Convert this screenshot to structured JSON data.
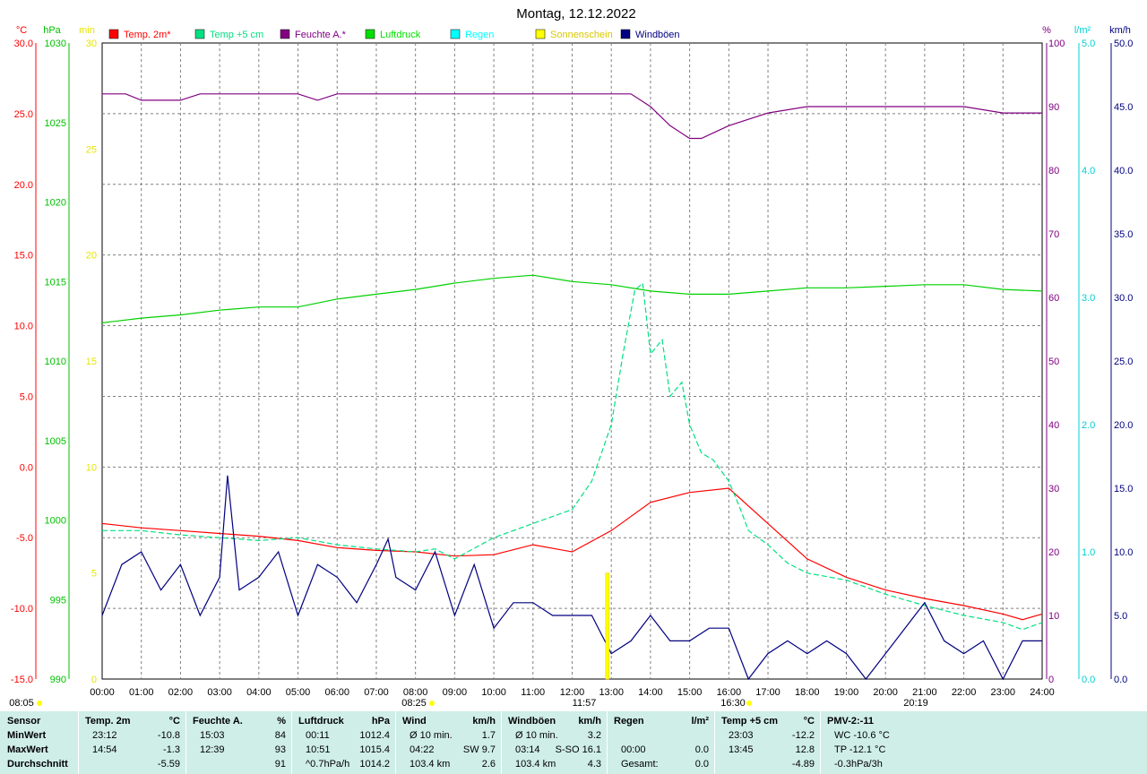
{
  "title": "Montag, 12.12.2022",
  "legend": [
    {
      "label": "Temp. 2m*",
      "color": "#ff0000"
    },
    {
      "label": "Temp +5 cm",
      "color": "#00e080"
    },
    {
      "label": "Feuchte A.*",
      "color": "#800080"
    },
    {
      "label": "Luftdruck",
      "color": "#00e000"
    },
    {
      "label": "Regen",
      "color": "#00ffff"
    },
    {
      "label": "Sonnenschein",
      "color": "#ffff00"
    },
    {
      "label": "Windböen",
      "color": "#000080"
    }
  ],
  "axes": {
    "temp": {
      "unit": "°C",
      "ticks": [
        "30.0",
        "25.0",
        "20.0",
        "15.0",
        "10.0",
        "5.0",
        "0.0",
        "-5.0",
        "-10.0",
        "-15.0"
      ],
      "color": "#ff0000"
    },
    "hpa": {
      "unit": "hPa",
      "ticks": [
        "1030",
        "1025",
        "1020",
        "1015",
        "1010",
        "1005",
        "1000",
        "995",
        "990"
      ],
      "color": "#00c000"
    },
    "min": {
      "unit": "min",
      "ticks": [
        "30",
        "25",
        "20",
        "15",
        "10",
        "5",
        "0"
      ],
      "color": "#e6e600"
    },
    "pct": {
      "unit": "%",
      "ticks": [
        "100",
        "90",
        "80",
        "70",
        "60",
        "50",
        "40",
        "30",
        "20",
        "10",
        "0"
      ],
      "color": "#800080"
    },
    "rain": {
      "unit": "l/m²",
      "ticks": [
        "5.0",
        "4.0",
        "3.0",
        "2.0",
        "1.0",
        "0.0"
      ],
      "color": "#00d0d0"
    },
    "kmh": {
      "unit": "km/h",
      "ticks": [
        "50.0",
        "45.0",
        "40.0",
        "35.0",
        "30.0",
        "25.0",
        "20.0",
        "15.0",
        "10.0",
        "5.0",
        "0.0"
      ],
      "color": "#000080"
    }
  },
  "x_ticks": [
    "00:00",
    "01:00",
    "02:00",
    "03:00",
    "04:00",
    "05:00",
    "06:00",
    "07:00",
    "08:00",
    "09:00",
    "10:00",
    "11:00",
    "12:00",
    "13:00",
    "14:00",
    "15:00",
    "16:00",
    "17:00",
    "18:00",
    "19:00",
    "20:00",
    "21:00",
    "22:00",
    "23:00",
    "24:00"
  ],
  "sun_labels": {
    "left": "08:05",
    "rise": "08:25",
    "noon": "11:57",
    "set": "16:30",
    "right": "20:19"
  },
  "chart_data": {
    "type": "line",
    "x_unit": "hour",
    "xlim": [
      0,
      24
    ],
    "series": [
      {
        "name": "Temp. 2m*",
        "axis": "°C",
        "ylim": [
          -15,
          30
        ],
        "x": [
          0,
          1,
          2,
          3,
          4,
          5,
          6,
          7,
          8,
          9,
          10,
          11,
          12,
          13,
          14,
          15,
          16,
          17,
          18,
          19,
          20,
          21,
          22,
          23,
          23.5,
          24
        ],
        "values": [
          -4.0,
          -4.3,
          -4.5,
          -4.7,
          -4.9,
          -5.2,
          -5.7,
          -5.9,
          -6.0,
          -6.3,
          -6.2,
          -5.5,
          -6.0,
          -4.5,
          -2.5,
          -1.8,
          -1.5,
          -4.0,
          -6.5,
          -7.8,
          -8.7,
          -9.3,
          -9.8,
          -10.4,
          -10.8,
          -10.4
        ]
      },
      {
        "name": "Temp +5 cm",
        "axis": "°C",
        "ylim": [
          -15,
          30
        ],
        "x": [
          0,
          1,
          2,
          3,
          4,
          5,
          6,
          7,
          8,
          8.5,
          9,
          10,
          11,
          11.5,
          12,
          12.5,
          13,
          13.3,
          13.6,
          13.8,
          14,
          14.3,
          14.5,
          14.8,
          15,
          15.3,
          15.6,
          16,
          16.3,
          16.5,
          17,
          17.5,
          18,
          19,
          20,
          21,
          22,
          23,
          23.5,
          24
        ],
        "values": [
          -4.5,
          -4.5,
          -4.8,
          -5.0,
          -5.2,
          -5.0,
          -5.5,
          -5.8,
          -6.0,
          -5.8,
          -6.5,
          -5.0,
          -4.0,
          -3.5,
          -3.0,
          -1.0,
          3.0,
          8.0,
          12.5,
          13.0,
          8.0,
          9.0,
          5.0,
          6.0,
          3.0,
          1.0,
          0.5,
          -1.0,
          -3.0,
          -4.5,
          -5.5,
          -6.8,
          -7.5,
          -8.0,
          -9.0,
          -9.8,
          -10.5,
          -11.0,
          -11.5,
          -11.0
        ]
      },
      {
        "name": "Feuchte A.*",
        "axis": "%",
        "ylim": [
          0,
          100
        ],
        "x": [
          0,
          0.6,
          1,
          2,
          2.5,
          3,
          4,
          5,
          5.5,
          6,
          7,
          8,
          9,
          10,
          11,
          12,
          13,
          13.5,
          14,
          14.5,
          15,
          15.3,
          16,
          17,
          18,
          19,
          20,
          21,
          22,
          23,
          24
        ],
        "values": [
          92,
          92,
          91,
          91,
          92,
          92,
          92,
          92,
          91,
          92,
          92,
          92,
          92,
          92,
          92,
          92,
          92,
          92,
          90,
          87,
          85,
          85,
          87,
          89,
          90,
          90,
          90,
          90,
          90,
          89,
          89
        ]
      },
      {
        "name": "Luftdruck",
        "axis": "hPa",
        "ylim": [
          990,
          1030
        ],
        "x": [
          0,
          1,
          2,
          3,
          4,
          5,
          6,
          7,
          8,
          9,
          10,
          11,
          12,
          13,
          14,
          15,
          16,
          17,
          18,
          19,
          20,
          21,
          22,
          23,
          24
        ],
        "values": [
          1012.4,
          1012.7,
          1012.9,
          1013.2,
          1013.4,
          1013.4,
          1013.9,
          1014.2,
          1014.5,
          1014.9,
          1015.2,
          1015.4,
          1015.0,
          1014.8,
          1014.4,
          1014.2,
          1014.2,
          1014.4,
          1014.6,
          1014.6,
          1014.7,
          1014.8,
          1014.8,
          1014.5,
          1014.4
        ]
      },
      {
        "name": "Windböen",
        "axis": "km/h",
        "ylim": [
          0,
          50
        ],
        "x": [
          0,
          0.5,
          1,
          1.5,
          2,
          2.5,
          3,
          3.2,
          3.5,
          4,
          4.5,
          5,
          5.5,
          6,
          6.5,
          7,
          7.3,
          7.5,
          8,
          8.5,
          9,
          9.5,
          10,
          10.5,
          11,
          11.5,
          12,
          12.5,
          13,
          13.5,
          14,
          14.5,
          15,
          15.5,
          16,
          16.5,
          17,
          17.5,
          18,
          18.5,
          19,
          19.5,
          20,
          20.5,
          21,
          21.5,
          22,
          22.5,
          23,
          23.5,
          24
        ],
        "values": [
          5,
          9,
          10,
          7,
          9,
          5,
          8,
          16,
          7,
          8,
          10,
          5,
          9,
          8,
          6,
          9,
          11,
          8,
          7,
          10,
          5,
          9,
          4,
          6,
          6,
          5,
          5,
          5,
          2,
          3,
          5,
          3,
          3,
          4,
          4,
          0,
          2,
          3,
          2,
          3,
          2,
          0,
          2,
          4,
          6,
          3,
          2,
          3,
          0,
          3,
          3
        ]
      }
    ],
    "sunshine_bars": [
      {
        "x": 12.9,
        "minutes": 5
      }
    ],
    "grid": true,
    "legend_placement": "top"
  },
  "stats": {
    "columns": [
      {
        "header": "Sensor",
        "header_unit": "",
        "rows": [
          [
            "MinWert",
            "",
            ""
          ],
          [
            "MaxWert",
            "",
            ""
          ],
          [
            "Durchschnitt",
            "",
            ""
          ]
        ]
      },
      {
        "header": "Temp. 2m",
        "header_unit": "°C",
        "rows": [
          [
            "23:12",
            "",
            "-10.8"
          ],
          [
            "14:54",
            "",
            "-1.3"
          ],
          [
            "",
            "",
            "-5.59"
          ]
        ]
      },
      {
        "header": "Feuchte A.",
        "header_unit": "%",
        "rows": [
          [
            "15:03",
            "",
            "84"
          ],
          [
            "12:39",
            "",
            "93"
          ],
          [
            "",
            "",
            "91"
          ]
        ]
      },
      {
        "header": "Luftdruck",
        "header_unit": "hPa",
        "rows": [
          [
            "00:11",
            "",
            "1012.4"
          ],
          [
            "10:51",
            "",
            "1015.4"
          ],
          [
            "^0.7hPa/h",
            "",
            "1014.2"
          ]
        ]
      },
      {
        "header": "Wind",
        "header_unit": "km/h",
        "rows": [
          [
            "Ø 10 min.",
            "",
            "1.7"
          ],
          [
            "04:22",
            "SW 9.7",
            ""
          ],
          [
            "103.4 km",
            "",
            "2.6"
          ]
        ]
      },
      {
        "header": "Windböen",
        "header_unit": "km/h",
        "rows": [
          [
            "Ø 10 min.",
            "",
            "3.2"
          ],
          [
            "03:14",
            "S-SO 16.1",
            ""
          ],
          [
            "103.4 km",
            "",
            "4.3"
          ]
        ]
      },
      {
        "header": "Regen",
        "header_unit": "l/m²",
        "rows": [
          [
            "",
            "",
            ""
          ],
          [
            "00:00",
            "",
            "0.0"
          ],
          [
            "Gesamt:",
            "",
            "0.0"
          ]
        ]
      },
      {
        "header": "Temp +5 cm",
        "header_unit": "°C",
        "rows": [
          [
            "23:03",
            "",
            "-12.2"
          ],
          [
            "13:45",
            "",
            "12.8"
          ],
          [
            "",
            "",
            "-4.89"
          ]
        ]
      },
      {
        "header": "PMV-2:-11",
        "header_unit": "",
        "rows": [
          [
            "WC -10.6 °C",
            "",
            ""
          ],
          [
            "TP -12.1 °C",
            "",
            ""
          ],
          [
            "-0.3hPa/3h",
            "",
            ""
          ]
        ]
      }
    ]
  }
}
